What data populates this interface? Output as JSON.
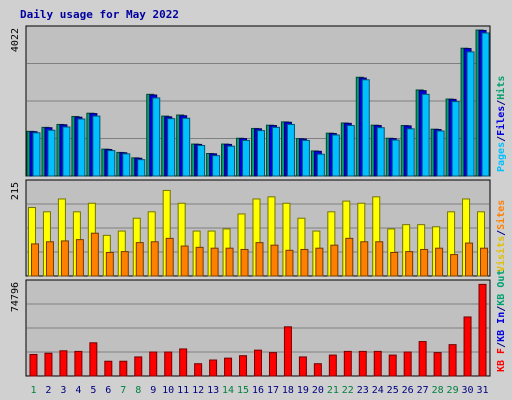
{
  "chart_data": {
    "type": "bar",
    "title": "Daily usage for May 2022",
    "categories": [
      "1",
      "2",
      "3",
      "4",
      "5",
      "6",
      "7",
      "8",
      "9",
      "10",
      "11",
      "12",
      "13",
      "14",
      "15",
      "16",
      "17",
      "18",
      "19",
      "20",
      "21",
      "22",
      "23",
      "24",
      "25",
      "26",
      "27",
      "28",
      "29",
      "30",
      "31"
    ],
    "weekend_days": [
      "1",
      "7",
      "8",
      "14",
      "15",
      "21",
      "22",
      "28",
      "29"
    ],
    "panels": [
      {
        "id": "top",
        "ymax": 4022,
        "ymax_label": "4022",
        "grid": true,
        "legend": [
          {
            "label": "Pages",
            "color": "#00c0ff"
          },
          {
            "label": "/",
            "color": "#000080"
          },
          {
            "label": "Files",
            "color": "#0000e0"
          },
          {
            "label": "/",
            "color": "#000080"
          },
          {
            "label": "Hits",
            "color": "#00a070"
          }
        ],
        "series": [
          {
            "name": "Hits",
            "color": "#00a070",
            "values": [
              1230,
              1340,
              1420,
              1640,
              1730,
              740,
              650,
              500,
              2250,
              1650,
              1680,
              880,
              620,
              880,
              1040,
              1310,
              1400,
              1490,
              1030,
              690,
              1180,
              1460,
              2720,
              1400,
              1040,
              1390,
              2370,
              1290,
              2120,
              3520,
              4020
            ]
          },
          {
            "name": "Files",
            "color": "#0000e0",
            "values": [
              1220,
              1330,
              1410,
              1620,
              1720,
              730,
              640,
              490,
              2230,
              1630,
              1660,
              870,
              610,
              870,
              1030,
              1300,
              1390,
              1480,
              1020,
              680,
              1170,
              1450,
              2700,
              1390,
              1030,
              1380,
              2350,
              1280,
              2110,
              3510,
              4010
            ]
          },
          {
            "name": "Pages",
            "color": "#00c0ff",
            "values": [
              1190,
              1260,
              1350,
              1570,
              1650,
              700,
              610,
              450,
              2150,
              1580,
              1590,
              840,
              560,
              820,
              980,
              1250,
              1340,
              1420,
              980,
              600,
              1130,
              1390,
              2650,
              1330,
              990,
              1300,
              2250,
              1240,
              2050,
              3420,
              3940
            ]
          }
        ]
      },
      {
        "id": "middle",
        "ymax": 215,
        "ymax_label": "215",
        "grid": true,
        "legend": [
          {
            "label": "Visits",
            "color": "#e0c000"
          },
          {
            "label": "/",
            "color": "#000080"
          },
          {
            "label": "Sites",
            "color": "#ff8000"
          }
        ],
        "series": [
          {
            "name": "Visits",
            "color": "#ffff00",
            "values": [
              160,
              150,
              180,
              150,
              170,
              95,
              105,
              135,
              150,
              200,
              170,
              105,
              105,
              110,
              145,
              180,
              185,
              170,
              135,
              105,
              150,
              175,
              170,
              185,
              110,
              120,
              120,
              115,
              150,
              180,
              150
            ]
          },
          {
            "name": "Sites",
            "color": "#ff8000",
            "values": [
              75,
              80,
              82,
              85,
              100,
              55,
              57,
              78,
              80,
              88,
              70,
              67,
              65,
              65,
              62,
              78,
              72,
              60,
              62,
              65,
              72,
              88,
              80,
              80,
              55,
              57,
              62,
              65,
              50,
              77,
              65
            ]
          }
        ]
      },
      {
        "id": "bottom",
        "ymax": 74796,
        "ymax_label": "74796",
        "grid": true,
        "legend": [
          {
            "label": "KB F",
            "color": "#ff0000"
          },
          {
            "label": "/",
            "color": "#000080"
          },
          {
            "label": "KB In",
            "color": "#0000e0"
          },
          {
            "label": "/",
            "color": "#000080"
          },
          {
            "label": "KB Out",
            "color": "#00a070"
          }
        ],
        "series": [
          {
            "name": "KB F",
            "color": "#ff0000",
            "values": [
              17500,
              18500,
              20500,
              20000,
              27000,
              12000,
              12000,
              15500,
              19500,
              19500,
              22000,
              10000,
              13000,
              14500,
              16500,
              21000,
              19000,
              40000,
              15500,
              10000,
              17000,
              20000,
              20000,
              20000,
              17000,
              19500,
              28000,
              19000,
              25500,
              48000,
              74500
            ]
          }
        ]
      }
    ]
  }
}
